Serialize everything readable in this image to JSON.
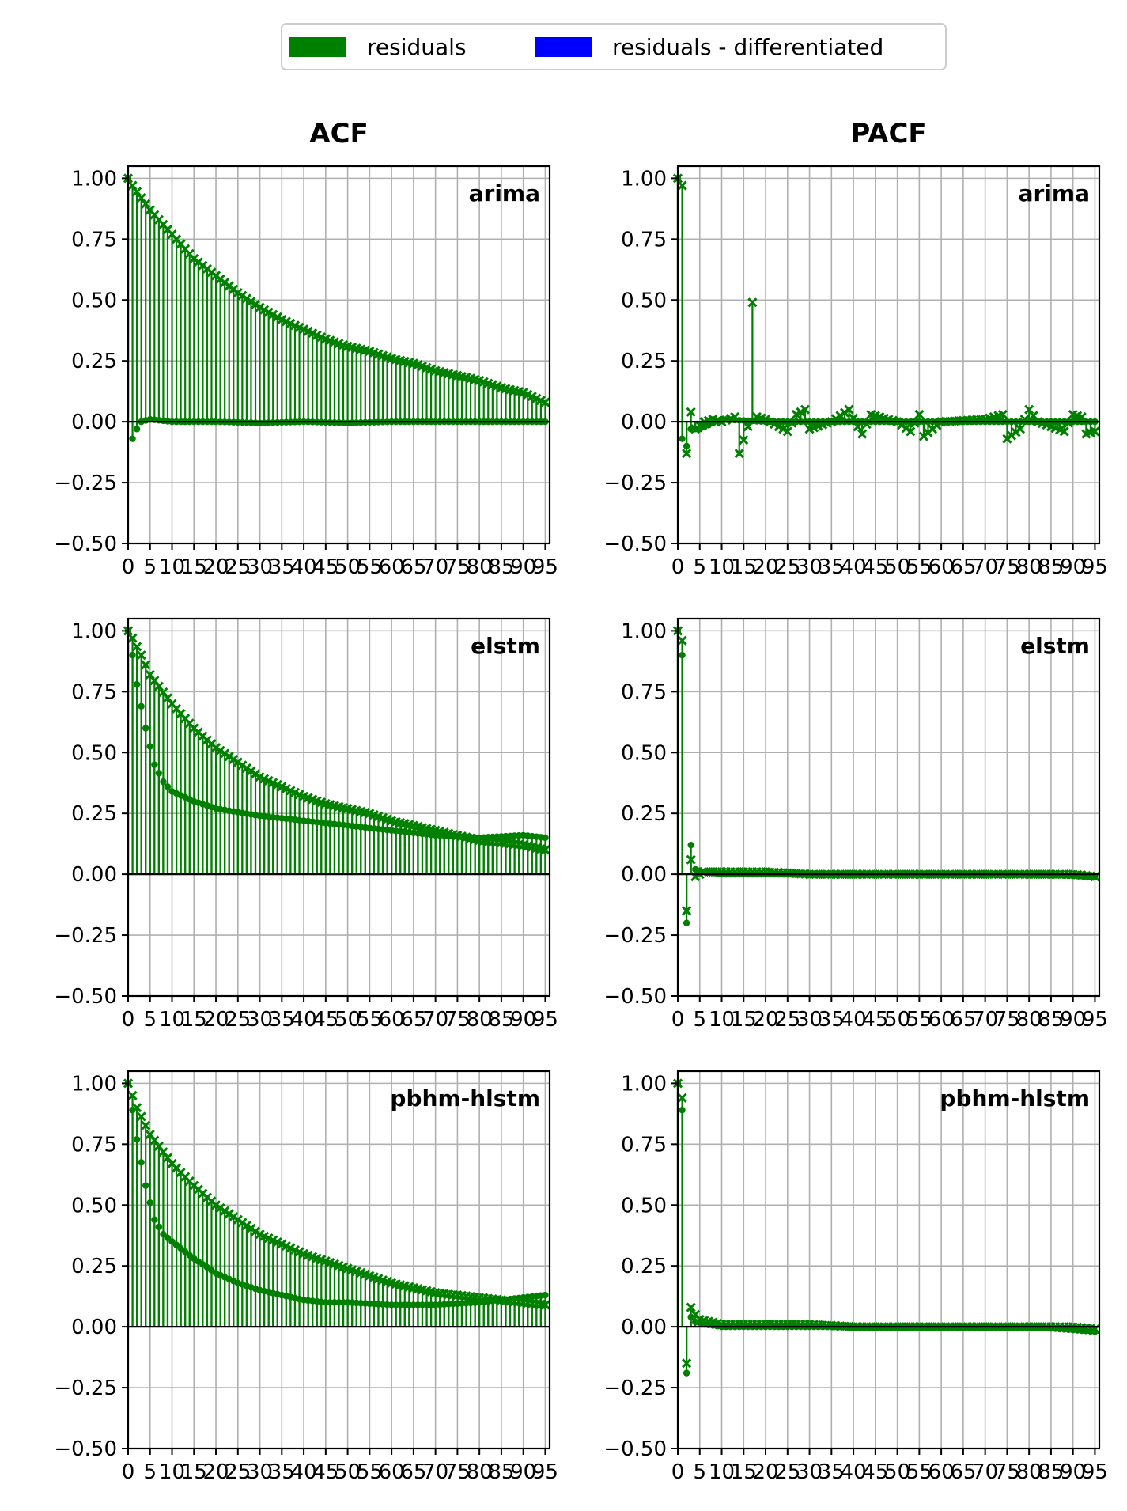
{
  "chart_data": {
    "type": "stem",
    "layout": "3 rows x 2 columns",
    "column_titles": [
      "ACF",
      "PACF"
    ],
    "legend": {
      "placement": "top-center",
      "entries": [
        {
          "label": "residuals",
          "color": "#008000"
        },
        {
          "label": "residuals - differentiated",
          "color": "#0000ff"
        }
      ]
    },
    "ylim": [
      -0.5,
      1.0
    ],
    "yticks": [
      "1.00",
      "0.75",
      "0.50",
      "0.25",
      "0.00",
      "−0.25",
      "−0.50"
    ],
    "ytick_values": [
      1.0,
      0.75,
      0.5,
      0.25,
      0.0,
      -0.25,
      -0.5
    ],
    "xlim": [
      0,
      95
    ],
    "xticks": [
      "0",
      "5",
      "10",
      "15",
      "20",
      "25",
      "30",
      "35",
      "40",
      "45",
      "50",
      "55",
      "60",
      "65",
      "70",
      "75",
      "80",
      "85",
      "90",
      "95"
    ],
    "grid": true,
    "marker_residuals": "x",
    "marker_differentiated": "dot",
    "panels": [
      {
        "row": 0,
        "col": 0,
        "stat": "ACF",
        "model": "arima",
        "residuals": [
          [
            0,
            1.0
          ],
          [
            1,
            0.97
          ],
          [
            5,
            0.87
          ],
          [
            10,
            0.77
          ],
          [
            15,
            0.67
          ],
          [
            20,
            0.6
          ],
          [
            25,
            0.53
          ],
          [
            30,
            0.47
          ],
          [
            35,
            0.42
          ],
          [
            40,
            0.38
          ],
          [
            45,
            0.34
          ],
          [
            50,
            0.31
          ],
          [
            55,
            0.29
          ],
          [
            60,
            0.26
          ],
          [
            65,
            0.24
          ],
          [
            70,
            0.21
          ],
          [
            75,
            0.19
          ],
          [
            80,
            0.17
          ],
          [
            85,
            0.14
          ],
          [
            90,
            0.12
          ],
          [
            95,
            0.08
          ]
        ],
        "differentiated": [
          [
            0,
            1.0
          ],
          [
            1,
            -0.07
          ],
          [
            2,
            -0.03
          ],
          [
            3,
            0.0
          ],
          [
            5,
            0.01
          ],
          [
            10,
            0.0
          ],
          [
            20,
            0.0
          ],
          [
            30,
            -0.005
          ],
          [
            40,
            0.0
          ],
          [
            50,
            -0.005
          ],
          [
            60,
            0.0
          ],
          [
            70,
            0.0
          ],
          [
            80,
            0.0
          ],
          [
            95,
            0.0
          ]
        ]
      },
      {
        "row": 0,
        "col": 1,
        "stat": "PACF",
        "model": "arima",
        "residuals": [
          [
            0,
            1.0
          ],
          [
            1,
            0.97
          ],
          [
            2,
            -0.13
          ],
          [
            3,
            0.04
          ],
          [
            4,
            -0.03
          ],
          [
            6,
            0.0
          ],
          [
            8,
            0.01
          ],
          [
            10,
            0.0
          ],
          [
            13,
            0.02
          ],
          [
            14,
            -0.13
          ],
          [
            16,
            -0.02
          ],
          [
            17,
            0.49
          ],
          [
            18,
            0.02
          ],
          [
            20,
            0.01
          ],
          [
            25,
            -0.04
          ],
          [
            27,
            0.03
          ],
          [
            29,
            0.05
          ],
          [
            30,
            -0.03
          ],
          [
            35,
            0.0
          ],
          [
            39,
            0.05
          ],
          [
            41,
            -0.02
          ],
          [
            42,
            -0.05
          ],
          [
            44,
            0.03
          ],
          [
            50,
            0.0
          ],
          [
            53,
            -0.04
          ],
          [
            55,
            0.03
          ],
          [
            56,
            -0.06
          ],
          [
            60,
            0.0
          ],
          [
            70,
            0.01
          ],
          [
            74,
            0.03
          ],
          [
            75,
            -0.07
          ],
          [
            78,
            -0.03
          ],
          [
            80,
            0.05
          ],
          [
            82,
            0.0
          ],
          [
            88,
            -0.04
          ],
          [
            90,
            0.03
          ],
          [
            92,
            0.02
          ],
          [
            93,
            -0.05
          ],
          [
            95,
            -0.04
          ]
        ],
        "differentiated": [
          [
            0,
            1.0
          ],
          [
            1,
            -0.07
          ],
          [
            2,
            -0.1
          ],
          [
            3,
            -0.03
          ],
          [
            5,
            -0.03
          ],
          [
            10,
            0.01
          ],
          [
            20,
            0.0
          ],
          [
            30,
            0.0
          ],
          [
            50,
            0.0
          ],
          [
            70,
            0.0
          ],
          [
            95,
            0.0
          ]
        ]
      },
      {
        "row": 1,
        "col": 0,
        "stat": "ACF",
        "model": "elstm",
        "residuals": [
          [
            0,
            1.0
          ],
          [
            1,
            0.97
          ],
          [
            3,
            0.9
          ],
          [
            5,
            0.82
          ],
          [
            10,
            0.7
          ],
          [
            15,
            0.6
          ],
          [
            20,
            0.52
          ],
          [
            25,
            0.46
          ],
          [
            30,
            0.4
          ],
          [
            35,
            0.36
          ],
          [
            40,
            0.32
          ],
          [
            45,
            0.29
          ],
          [
            50,
            0.27
          ],
          [
            55,
            0.25
          ],
          [
            60,
            0.22
          ],
          [
            65,
            0.2
          ],
          [
            70,
            0.18
          ],
          [
            75,
            0.16
          ],
          [
            80,
            0.14
          ],
          [
            85,
            0.13
          ],
          [
            90,
            0.12
          ],
          [
            95,
            0.1
          ]
        ],
        "differentiated": [
          [
            0,
            1.0
          ],
          [
            1,
            0.9
          ],
          [
            2,
            0.78
          ],
          [
            4,
            0.6
          ],
          [
            6,
            0.45
          ],
          [
            8,
            0.38
          ],
          [
            10,
            0.34
          ],
          [
            15,
            0.3
          ],
          [
            20,
            0.27
          ],
          [
            30,
            0.24
          ],
          [
            40,
            0.22
          ],
          [
            50,
            0.2
          ],
          [
            60,
            0.18
          ],
          [
            70,
            0.16
          ],
          [
            80,
            0.15
          ],
          [
            90,
            0.16
          ],
          [
            95,
            0.15
          ]
        ]
      },
      {
        "row": 1,
        "col": 1,
        "stat": "PACF",
        "model": "elstm",
        "residuals": [
          [
            0,
            1.0
          ],
          [
            1,
            0.96
          ],
          [
            2,
            -0.15
          ],
          [
            3,
            0.06
          ],
          [
            4,
            -0.01
          ],
          [
            6,
            0.01
          ],
          [
            10,
            0.01
          ],
          [
            20,
            0.01
          ],
          [
            30,
            0.0
          ],
          [
            40,
            0.0
          ],
          [
            50,
            0.0
          ],
          [
            60,
            0.0
          ],
          [
            70,
            0.0
          ],
          [
            80,
            0.0
          ],
          [
            90,
            0.0
          ],
          [
            95,
            -0.01
          ]
        ],
        "differentiated": [
          [
            0,
            1.0
          ],
          [
            1,
            0.9
          ],
          [
            2,
            -0.2
          ],
          [
            3,
            0.12
          ],
          [
            4,
            0.02
          ],
          [
            6,
            0.01
          ],
          [
            10,
            0.0
          ],
          [
            20,
            0.0
          ],
          [
            40,
            0.0
          ],
          [
            60,
            0.0
          ],
          [
            80,
            0.0
          ],
          [
            95,
            -0.01
          ]
        ]
      },
      {
        "row": 2,
        "col": 0,
        "stat": "ACF",
        "model": "pbhm-hlstm",
        "residuals": [
          [
            0,
            1.0
          ],
          [
            1,
            0.95
          ],
          [
            2,
            0.9
          ],
          [
            5,
            0.79
          ],
          [
            10,
            0.67
          ],
          [
            15,
            0.58
          ],
          [
            20,
            0.5
          ],
          [
            25,
            0.44
          ],
          [
            30,
            0.38
          ],
          [
            35,
            0.34
          ],
          [
            40,
            0.3
          ],
          [
            45,
            0.27
          ],
          [
            50,
            0.24
          ],
          [
            55,
            0.21
          ],
          [
            60,
            0.18
          ],
          [
            65,
            0.16
          ],
          [
            70,
            0.14
          ],
          [
            75,
            0.13
          ],
          [
            80,
            0.12
          ],
          [
            85,
            0.11
          ],
          [
            90,
            0.1
          ],
          [
            95,
            0.09
          ]
        ],
        "differentiated": [
          [
            0,
            1.0
          ],
          [
            1,
            0.89
          ],
          [
            2,
            0.77
          ],
          [
            4,
            0.58
          ],
          [
            6,
            0.44
          ],
          [
            8,
            0.38
          ],
          [
            10,
            0.35
          ],
          [
            15,
            0.28
          ],
          [
            20,
            0.22
          ],
          [
            25,
            0.18
          ],
          [
            30,
            0.15
          ],
          [
            35,
            0.13
          ],
          [
            40,
            0.11
          ],
          [
            45,
            0.1
          ],
          [
            50,
            0.1
          ],
          [
            60,
            0.09
          ],
          [
            70,
            0.09
          ],
          [
            80,
            0.1
          ],
          [
            85,
            0.11
          ],
          [
            90,
            0.12
          ],
          [
            95,
            0.13
          ]
        ]
      },
      {
        "row": 2,
        "col": 1,
        "stat": "PACF",
        "model": "pbhm-hlstm",
        "residuals": [
          [
            0,
            1.0
          ],
          [
            1,
            0.94
          ],
          [
            2,
            -0.15
          ],
          [
            3,
            0.08
          ],
          [
            4,
            0.05
          ],
          [
            5,
            0.03
          ],
          [
            10,
            0.01
          ],
          [
            20,
            0.01
          ],
          [
            30,
            0.01
          ],
          [
            40,
            0.0
          ],
          [
            50,
            0.0
          ],
          [
            60,
            0.0
          ],
          [
            70,
            0.0
          ],
          [
            80,
            0.0
          ],
          [
            90,
            0.0
          ],
          [
            95,
            -0.01
          ]
        ],
        "differentiated": [
          [
            0,
            1.0
          ],
          [
            1,
            0.89
          ],
          [
            2,
            -0.19
          ],
          [
            3,
            0.04
          ],
          [
            4,
            0.02
          ],
          [
            6,
            0.01
          ],
          [
            10,
            0.0
          ],
          [
            20,
            0.0
          ],
          [
            40,
            0.0
          ],
          [
            60,
            0.0
          ],
          [
            80,
            0.0
          ],
          [
            95,
            -0.02
          ]
        ]
      }
    ]
  }
}
